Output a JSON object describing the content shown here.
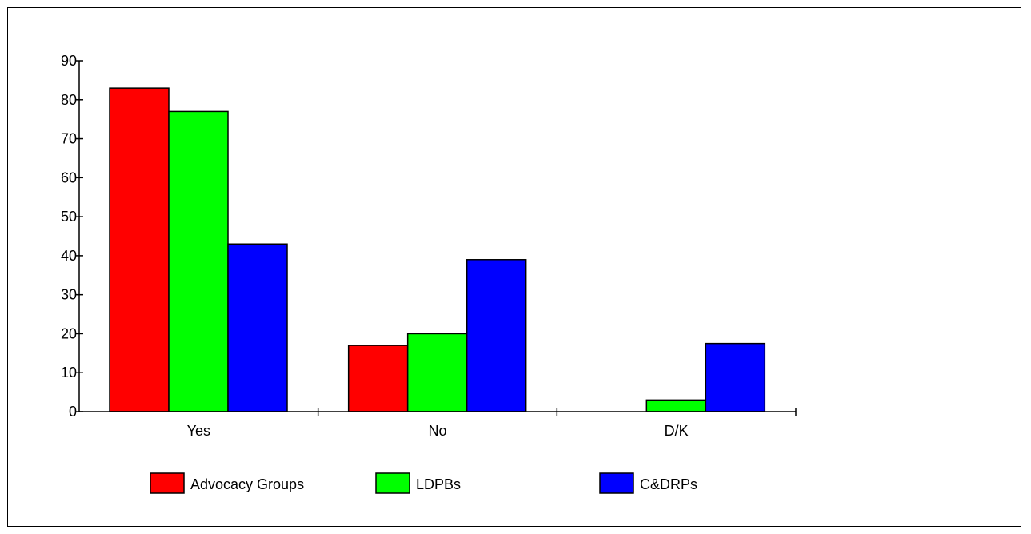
{
  "chart_data": {
    "type": "bar",
    "categories": [
      "Yes",
      "No",
      "D/K"
    ],
    "series": [
      {
        "name": "Advocacy Groups",
        "color": "#ff0000",
        "values": [
          83,
          17,
          0
        ]
      },
      {
        "name": "LDPBs",
        "color": "#00ff00",
        "values": [
          77,
          20,
          3
        ]
      },
      {
        "name": "C&DRPs",
        "color": "#0000ff",
        "values": [
          43,
          39,
          17.5
        ]
      }
    ],
    "yticks": [
      0,
      10,
      20,
      30,
      40,
      50,
      60,
      70,
      80,
      90
    ],
    "ylim": [
      0,
      90
    ],
    "grid": false,
    "legend_position": "bottom"
  }
}
